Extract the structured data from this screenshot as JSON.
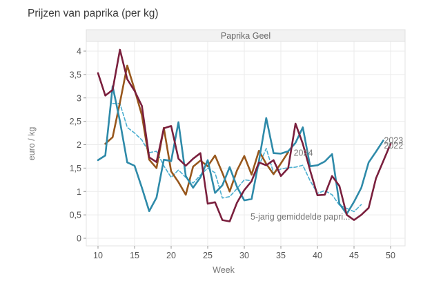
{
  "page": {
    "title": "Prijzen van paprika (per kg)"
  },
  "chart_data": {
    "type": "line",
    "title": "Prijzen van paprika (per kg)",
    "facet": "Paprika Geel",
    "xlabel": "Week",
    "ylabel": "euro / kg",
    "xlim": [
      9,
      52
    ],
    "ylim": [
      -0.16,
      4.25
    ],
    "xticks": [
      10,
      15,
      20,
      25,
      30,
      35,
      40,
      45,
      50
    ],
    "xtick_labels": [
      "10",
      "15",
      "20",
      "25",
      "30",
      "35",
      "40",
      "45",
      "50"
    ],
    "yticks": [
      0,
      0.5,
      1,
      1.5,
      2,
      2.5,
      3,
      3.5,
      4
    ],
    "ytick_labels": [
      "0",
      "0,5",
      "1",
      "1,5",
      "2",
      "2,5",
      "3",
      "3,5",
      "4"
    ],
    "grid": true,
    "legend": "direct-labels",
    "series": [
      {
        "name": "5-jarig gemiddelde papri...",
        "color": "#4aaed0",
        "dashed": true,
        "x": [
          12,
          13,
          14,
          15,
          16,
          17,
          18,
          19,
          20,
          21,
          22,
          23,
          24,
          25,
          26,
          27,
          28,
          29,
          30,
          31,
          32,
          33,
          34,
          35,
          36,
          37,
          38,
          39,
          40,
          41,
          42,
          43,
          44,
          45,
          46
        ],
        "values": [
          2.88,
          2.88,
          2.37,
          2.25,
          2.1,
          1.83,
          1.86,
          1.55,
          1.3,
          1.46,
          1.3,
          1.18,
          1.35,
          1.5,
          1.4,
          0.86,
          0.89,
          1.06,
          1.25,
          1.23,
          1.55,
          1.92,
          1.4,
          1.48,
          1.51,
          1.52,
          1.56,
          1.23,
          0.96,
          1.02,
          0.93,
          0.71,
          0.64,
          0.57,
          0.72
        ]
      },
      {
        "name": "2024",
        "color": "#98571c",
        "dashed": false,
        "x": [
          11,
          12,
          13,
          14,
          15,
          16,
          17,
          18,
          19,
          20,
          21,
          22,
          23,
          24,
          25,
          26,
          27,
          28,
          29,
          30,
          31,
          32,
          33,
          34,
          35,
          36
        ],
        "values": [
          2.02,
          2.16,
          2.9,
          3.69,
          3.18,
          2.63,
          1.68,
          1.5,
          2.36,
          1.43,
          1.2,
          0.93,
          1.53,
          1.66,
          1.54,
          1.77,
          1.4,
          1.0,
          1.45,
          1.76,
          1.36,
          1.87,
          1.59,
          1.37,
          1.6,
          1.84
        ]
      },
      {
        "name": "2023",
        "color": "#2e8aa9",
        "dashed": false,
        "x": [
          10,
          11,
          12,
          13,
          14,
          15,
          16,
          17,
          18,
          19,
          20,
          21,
          22,
          23,
          24,
          25,
          26,
          27,
          28,
          29,
          30,
          31,
          32,
          33,
          34,
          35,
          36,
          37,
          38,
          39,
          40,
          41,
          42,
          43,
          44,
          45,
          46,
          47,
          48,
          49
        ],
        "values": [
          1.67,
          1.77,
          3.25,
          2.5,
          1.62,
          1.55,
          1.08,
          0.58,
          0.87,
          1.68,
          1.65,
          2.48,
          1.33,
          1.08,
          1.3,
          1.67,
          0.97,
          1.13,
          1.52,
          1.1,
          0.81,
          0.84,
          1.65,
          2.57,
          1.82,
          1.81,
          1.86,
          2.04,
          2.37,
          1.54,
          1.56,
          1.64,
          1.8,
          0.74,
          0.52,
          0.78,
          1.08,
          1.62,
          1.85,
          2.09
        ]
      },
      {
        "name": "2022",
        "color": "#7a1f3d",
        "dashed": false,
        "x": [
          10,
          11,
          12,
          13,
          14,
          15,
          16,
          17,
          18,
          19,
          20,
          21,
          22,
          23,
          24,
          25,
          26,
          27,
          28,
          29,
          30,
          31,
          32,
          33,
          34,
          35,
          36,
          37,
          38,
          39,
          40,
          41,
          42,
          43,
          44,
          45,
          46,
          47,
          48,
          49,
          50
        ],
        "values": [
          3.53,
          3.05,
          3.17,
          4.03,
          3.4,
          3.15,
          2.83,
          1.73,
          1.63,
          2.35,
          2.4,
          1.7,
          1.55,
          1.7,
          1.82,
          0.74,
          0.77,
          0.39,
          0.36,
          0.76,
          1.03,
          1.22,
          1.62,
          1.56,
          1.67,
          1.33,
          1.5,
          2.45,
          2.02,
          1.45,
          0.92,
          0.93,
          1.33,
          1.12,
          0.5,
          0.39,
          0.5,
          0.65,
          1.28,
          1.65,
          2.02
        ]
      }
    ]
  }
}
